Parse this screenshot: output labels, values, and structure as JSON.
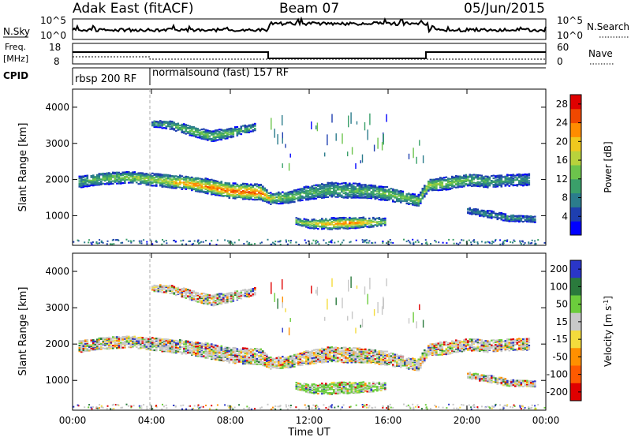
{
  "header": {
    "station": "Adak East (fitACF)",
    "beam": "Beam 07",
    "date": "05/Jun/2015"
  },
  "noise_panel": {
    "left_label": "N.Sky",
    "right_label": "N.Search",
    "left_ticks": [
      "10^5",
      "10^0"
    ],
    "right_ticks": [
      "10^5",
      "10^0"
    ]
  },
  "freq_panel": {
    "left_label": "Freq.",
    "left_unit": "[MHz]",
    "right_label": "Nave",
    "left_ticks": [
      "18",
      "8"
    ],
    "right_ticks": [
      "60",
      "0"
    ]
  },
  "cpid_panel": {
    "label": "CPID",
    "modes": [
      "rbsp 200 RF",
      "normalsound (fast) 157 RF"
    ]
  },
  "chart_data": [
    {
      "type": "heatmap",
      "title": "",
      "xlabel": "Time UT",
      "ylabel": "Slant Range [km]",
      "x_ticks": [
        "00:00",
        "04:00",
        "08:00",
        "12:00",
        "16:00",
        "20:00",
        "00:00"
      ],
      "y_ticks": [
        1000,
        2000,
        3000,
        4000
      ],
      "ylim": [
        180,
        4500
      ],
      "colorbar": {
        "label": "Power [dB]",
        "ticks": [
          4,
          8,
          12,
          16,
          20,
          24,
          28
        ],
        "range": [
          0,
          30
        ],
        "colors": [
          "#0000ff",
          "#1e3fb0",
          "#2b7c8c",
          "#3aa06a",
          "#6cc44c",
          "#b8d23c",
          "#f0c81e",
          "#ff8c00",
          "#f04800",
          "#e00000"
        ]
      },
      "bands": [
        {
          "name": "main",
          "t": [
            0.3,
            1,
            2,
            3,
            4,
            5,
            6,
            7,
            8,
            9.5,
            10,
            11,
            12,
            13,
            14,
            15,
            16,
            17.5,
            18,
            19,
            20,
            21,
            22,
            23.2
          ],
          "r": [
            1930,
            2000,
            2050,
            2060,
            2000,
            1950,
            1900,
            1800,
            1700,
            1650,
            1480,
            1520,
            1650,
            1720,
            1700,
            1680,
            1600,
            1420,
            1850,
            1900,
            2000,
            1950,
            1980,
            2000
          ],
          "w": [
            300,
            320,
            320,
            300,
            330,
            350,
            380,
            400,
            420,
            420,
            300,
            320,
            380,
            400,
            400,
            380,
            360,
            300,
            320,
            340,
            320,
            320,
            300,
            300
          ],
          "strength": [
            10,
            12,
            14,
            15,
            16,
            18,
            20,
            22,
            24,
            24,
            16,
            14,
            12,
            12,
            12,
            12,
            14,
            14,
            16,
            15,
            13,
            11,
            10,
            9
          ]
        },
        {
          "name": "upper",
          "t": [
            4,
            5,
            6,
            7,
            8,
            9.2
          ],
          "r": [
            3550,
            3500,
            3350,
            3200,
            3300,
            3450
          ],
          "w": [
            160,
            220,
            260,
            280,
            260,
            180
          ],
          "strength": [
            10,
            12,
            14,
            14,
            13,
            11
          ]
        },
        {
          "name": "low",
          "t": [
            11.3,
            12,
            13,
            14,
            15,
            15.8
          ],
          "r": [
            850,
            780,
            780,
            800,
            820,
            830
          ],
          "w": [
            180,
            240,
            300,
            300,
            260,
            180
          ],
          "strength": [
            14,
            18,
            22,
            24,
            20,
            14
          ]
        },
        {
          "name": "late",
          "t": [
            20,
            21,
            22,
            23.5
          ],
          "r": [
            1150,
            1050,
            950,
            900
          ],
          "w": [
            160,
            180,
            180,
            160
          ],
          "strength": [
            8,
            9,
            9,
            8
          ]
        }
      ]
    },
    {
      "type": "heatmap",
      "title": "",
      "xlabel": "Time UT",
      "ylabel": "Slant Range [km]",
      "x_ticks": [
        "00:00",
        "04:00",
        "08:00",
        "12:00",
        "16:00",
        "20:00",
        "00:00"
      ],
      "y_ticks": [
        1000,
        2000,
        3000,
        4000
      ],
      "ylim": [
        180,
        4500
      ],
      "colorbar": {
        "label": "Velocity [m s^-1]",
        "ticks": [
          200,
          100,
          50,
          15,
          -15,
          -50,
          -100,
          -200
        ],
        "colors": [
          "#2a36c8",
          "#2a7a3c",
          "#6ccc3c",
          "#c8c8c8",
          "#f4dc3c",
          "#ff9000",
          "#ff5a00",
          "#e00000"
        ]
      }
    }
  ]
}
